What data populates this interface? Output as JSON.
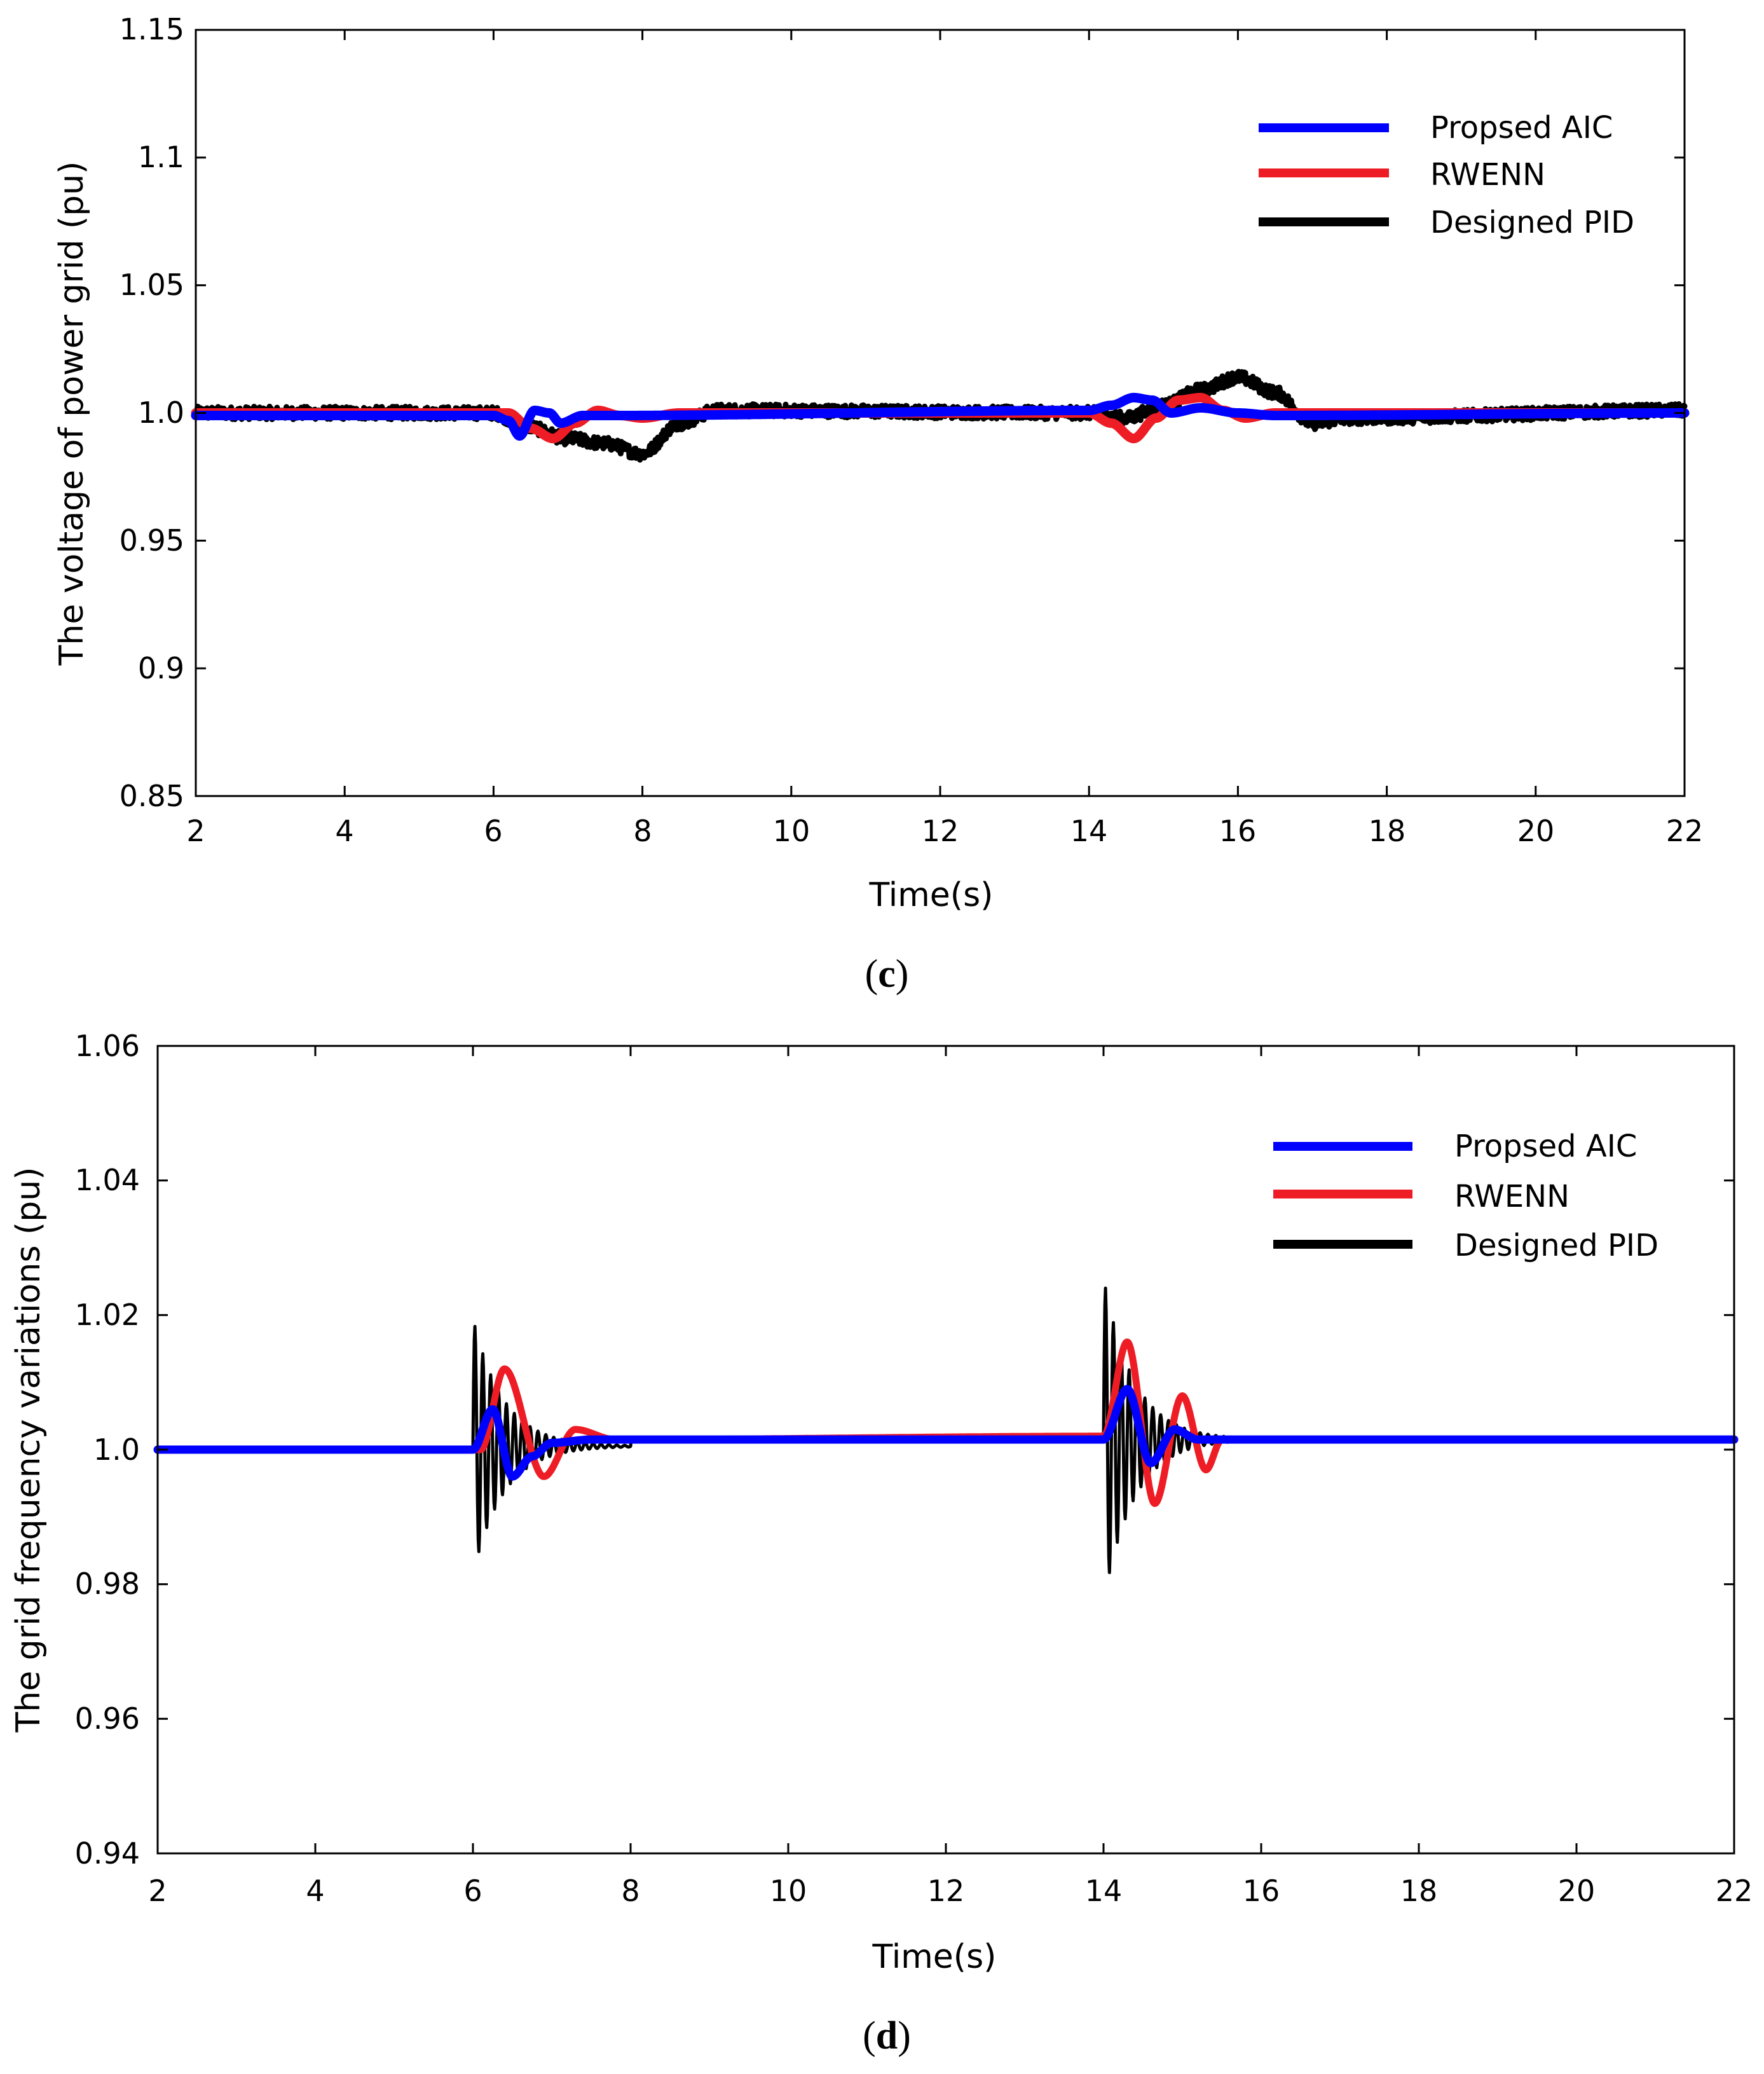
{
  "colors": {
    "aic": "#0000ff",
    "rwenn": "#ee1c25",
    "pid": "#000000"
  },
  "chart_data": [
    {
      "type": "line",
      "panel_label": "c",
      "xlabel": "Time(s)",
      "ylabel": "The voltage of power grid (pu)",
      "xlim": [
        2,
        22
      ],
      "ylim": [
        0.85,
        1.15
      ],
      "xticks": [
        2,
        4,
        6,
        8,
        10,
        12,
        14,
        16,
        18,
        20,
        22
      ],
      "xtick_labels": [
        "2",
        "4",
        "6",
        "8",
        "10",
        "12",
        "14",
        "16",
        "18",
        "20",
        "22"
      ],
      "yticks": [
        0.85,
        0.9,
        0.95,
        1.0,
        1.05,
        1.1,
        1.15
      ],
      "ytick_labels": [
        "0.85",
        "0.9",
        "0.95",
        "1.0",
        "1.05",
        "1.1",
        "1.15"
      ],
      "legend": [
        "Propsed AIC",
        "RWENN",
        "Designed PID"
      ],
      "legend_position": "top-right",
      "series": [
        {
          "name": "Designed PID",
          "color_key": "pid",
          "noise": 0.0025,
          "x": [
            2,
            6.0,
            6.4,
            7.0,
            7.5,
            8.0,
            8.5,
            9.0,
            14.0,
            14.5,
            15.0,
            15.5,
            16.0,
            16.5,
            17.0,
            17.5,
            22
          ],
          "y": [
            1.0,
            1.0,
            0.995,
            0.99,
            0.988,
            0.984,
            0.996,
            1.001,
            1.0,
            0.998,
            1.003,
            1.009,
            1.014,
            1.008,
            0.996,
            0.998,
            1.001
          ]
        },
        {
          "name": "RWENN",
          "color_key": "rwenn",
          "noise": 0,
          "x": [
            2,
            6.2,
            6.5,
            6.8,
            7.1,
            7.4,
            7.7,
            8.0,
            8.5,
            14.0,
            14.3,
            14.6,
            14.9,
            15.2,
            15.5,
            15.8,
            16.1,
            16.5,
            22
          ],
          "y": [
            1.0,
            1.0,
            0.994,
            0.99,
            0.996,
            1.001,
            0.999,
            0.998,
            1.0,
            1.0,
            0.996,
            0.99,
            0.998,
            1.005,
            1.006,
            1.001,
            0.998,
            1.0,
            1.0
          ]
        },
        {
          "name": "Propsed AIC",
          "color_key": "aic",
          "noise": 0,
          "x": [
            2,
            6.0,
            6.2,
            6.35,
            6.55,
            6.75,
            6.9,
            7.2,
            7.6,
            14.0,
            14.3,
            14.6,
            14.85,
            15.1,
            15.5,
            16.0,
            16.5,
            22
          ],
          "y": [
            0.999,
            0.999,
            0.997,
            0.991,
            1.001,
            1.0,
            0.996,
            0.999,
            0.999,
            1.001,
            1.003,
            1.006,
            1.005,
            1.0,
            1.002,
            1.0,
            0.999,
            1.0
          ]
        }
      ]
    },
    {
      "type": "line",
      "panel_label": "d",
      "xlabel": "Time(s)",
      "ylabel": "The grid frequency variations (pu)",
      "xlim": [
        2,
        22
      ],
      "ylim": [
        0.94,
        1.06
      ],
      "xticks": [
        2,
        4,
        6,
        8,
        10,
        12,
        14,
        16,
        18,
        20,
        22
      ],
      "xtick_labels": [
        "2",
        "4",
        "6",
        "8",
        "10",
        "12",
        "14",
        "16",
        "18",
        "20",
        "22"
      ],
      "yticks": [
        0.94,
        0.96,
        0.98,
        1.0,
        1.02,
        1.04,
        1.06
      ],
      "ytick_labels": [
        "0.94",
        "0.96",
        "0.98",
        "1.0",
        "1.02",
        "1.04",
        "1.06"
      ],
      "legend": [
        "Propsed AIC",
        "RWENN",
        "Designed PID"
      ],
      "legend_position": "top-right",
      "series": [
        {
          "name": "Designed PID",
          "color_key": "pid",
          "osc": [
            {
              "t0": 6.0,
              "t1": 8.0,
              "amp": 0.019,
              "period": 0.1,
              "decay": 0.85,
              "base": 1.0005
            },
            {
              "t0": 14.0,
              "t1": 16.0,
              "amp": 0.024,
              "period": 0.1,
              "decay": 0.85,
              "base": 1.0015
            }
          ],
          "x": [
            2,
            6.0,
            8.0,
            14.0,
            16.0,
            22
          ],
          "y": [
            1.0,
            1.0,
            1.0015,
            1.0015,
            1.0015,
            1.0015
          ]
        },
        {
          "name": "RWENN",
          "color_key": "rwenn",
          "x": [
            2,
            6.1,
            6.4,
            6.9,
            7.3,
            7.8,
            14.0,
            14.3,
            14.65,
            15.0,
            15.3,
            15.5,
            22
          ],
          "y": [
            1.0,
            1.0,
            1.012,
            0.996,
            1.003,
            1.0015,
            1.002,
            1.016,
            0.992,
            1.008,
            0.997,
            1.0015,
            1.0015
          ]
        },
        {
          "name": "Propsed AIC",
          "color_key": "aic",
          "x": [
            2,
            6.0,
            6.25,
            6.5,
            6.75,
            7.0,
            7.5,
            8.0,
            14.0,
            14.3,
            14.6,
            14.9,
            15.2,
            15.5,
            22
          ],
          "y": [
            1.0,
            1.0,
            1.006,
            0.996,
            0.999,
            1.001,
            1.0015,
            1.0015,
            1.0015,
            1.009,
            0.998,
            1.003,
            1.0015,
            1.0015,
            1.0015
          ]
        }
      ]
    }
  ]
}
